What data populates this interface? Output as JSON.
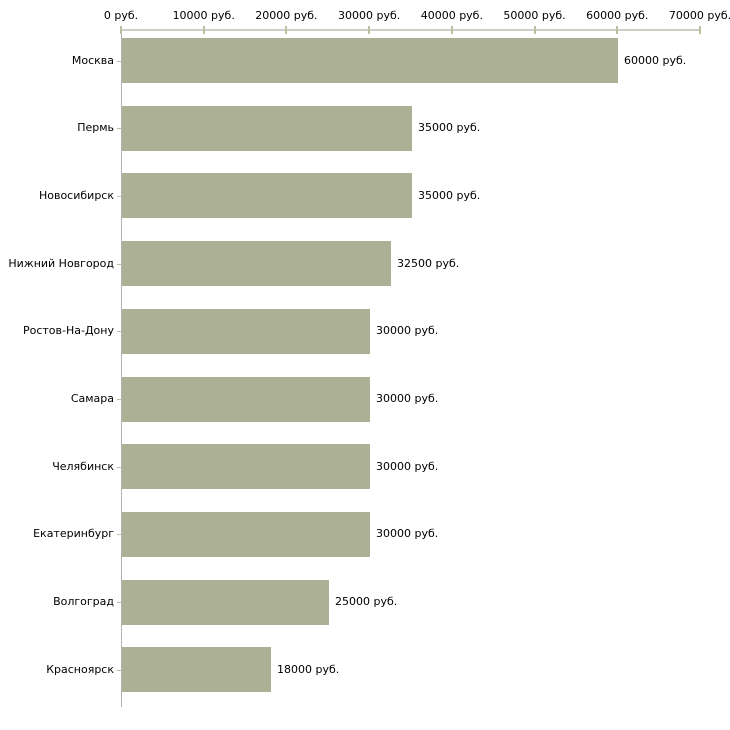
{
  "chart_data": {
    "type": "bar",
    "orientation": "horizontal",
    "title": "",
    "xlabel": "",
    "ylabel": "",
    "grid": false,
    "legend": null,
    "axis_position": "top",
    "categories": [
      "Москва",
      "Пермь",
      "Новосибирск",
      "Нижний Новгород",
      "Ростов-На-Дону",
      "Самара",
      "Челябинск",
      "Екатеринбург",
      "Волгоград",
      "Красноярск"
    ],
    "values": [
      60000,
      35000,
      35000,
      32500,
      30000,
      30000,
      30000,
      30000,
      25000,
      18000
    ],
    "value_labels": [
      "60000 руб.",
      "35000 руб.",
      "35000 руб.",
      "32500 руб.",
      "30000 руб.",
      "30000 руб.",
      "30000 руб.",
      "30000 руб.",
      "25000 руб.",
      "18000 руб."
    ],
    "x_ticks": [
      0,
      10000,
      20000,
      30000,
      40000,
      50000,
      60000,
      70000
    ],
    "x_tick_labels": [
      "0 руб.",
      "10000 руб.",
      "20000 руб.",
      "30000 руб.",
      "40000 руб.",
      "50000 руб.",
      "60000 руб.",
      "70000 руб."
    ],
    "xlim": [
      0,
      70000
    ],
    "colors": {
      "bar_fill": "#acb196",
      "x_tick_mark": "#bcc09f",
      "y_tick_mark": "#bcc09f",
      "axis_line_top": "#cdcdc5",
      "axis_line_left": "#b2b2b2",
      "text": "#000000",
      "background": "#ffffff"
    }
  }
}
